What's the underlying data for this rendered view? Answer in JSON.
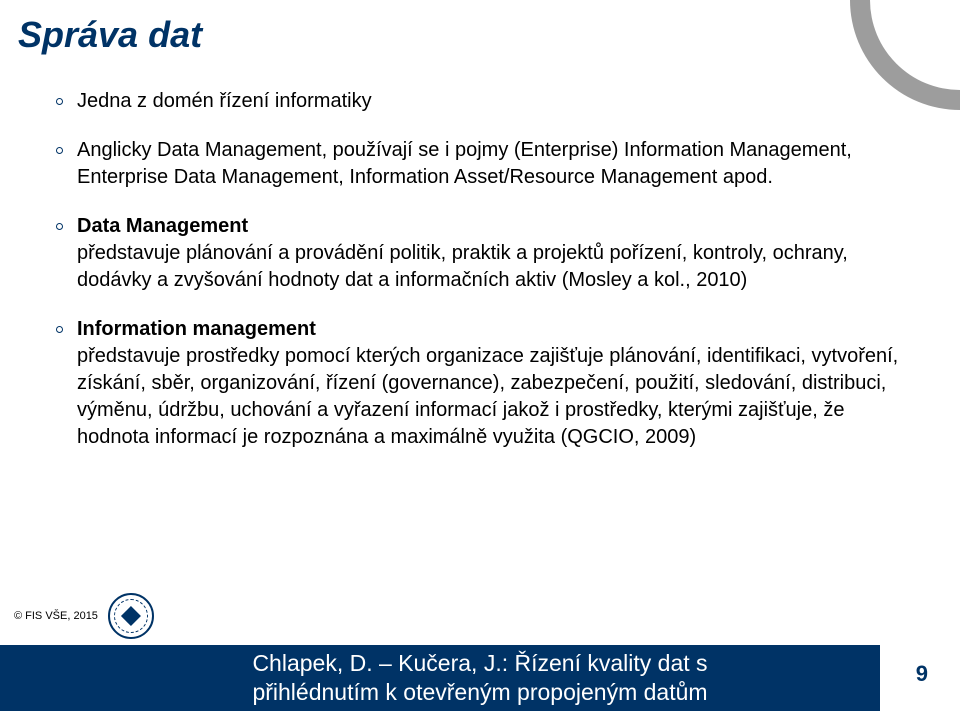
{
  "title": "Správa dat",
  "bullets": {
    "b1": "Jedna z domén řízení informatiky",
    "b2": "Anglicky Data Management, používají se i pojmy (Enterprise) Information Management, Enterprise Data Management, Information Asset/Resource Management apod.",
    "b3_lead": "Data Management",
    "b3_body": "představuje plánování a provádění politik, praktik a projektů pořízení, kontroly, ochrany, dodávky a zvyšování hodnoty dat a informačních aktiv (Mosley a kol., 2010)",
    "b4_lead": "Information management",
    "b4_body": "představuje prostředky pomocí kterých organizace zajišťuje plánování, identifikaci, vytvoření, získání, sběr, organizování, řízení (governance), zabezpečení, použití, sledování, distribuci, výměnu, údržbu, uchování a vyřazení informací jakož i prostředky, kterými zajišťuje, že hodnota informací je rozpoznána a maximálně využita (QGCIO, 2009)"
  },
  "footer": {
    "copyright": "© FIS VŠE, 2015",
    "title_line1": "Chlapek, D. – Kučera, J.: Řízení kvality dat s",
    "title_line2": "přihlédnutím k otevřeným propojeným datům",
    "page": "9"
  },
  "colors": {
    "brand": "#003366",
    "corner": "#9d9d9d",
    "text": "#000000",
    "bg": "#ffffff"
  }
}
